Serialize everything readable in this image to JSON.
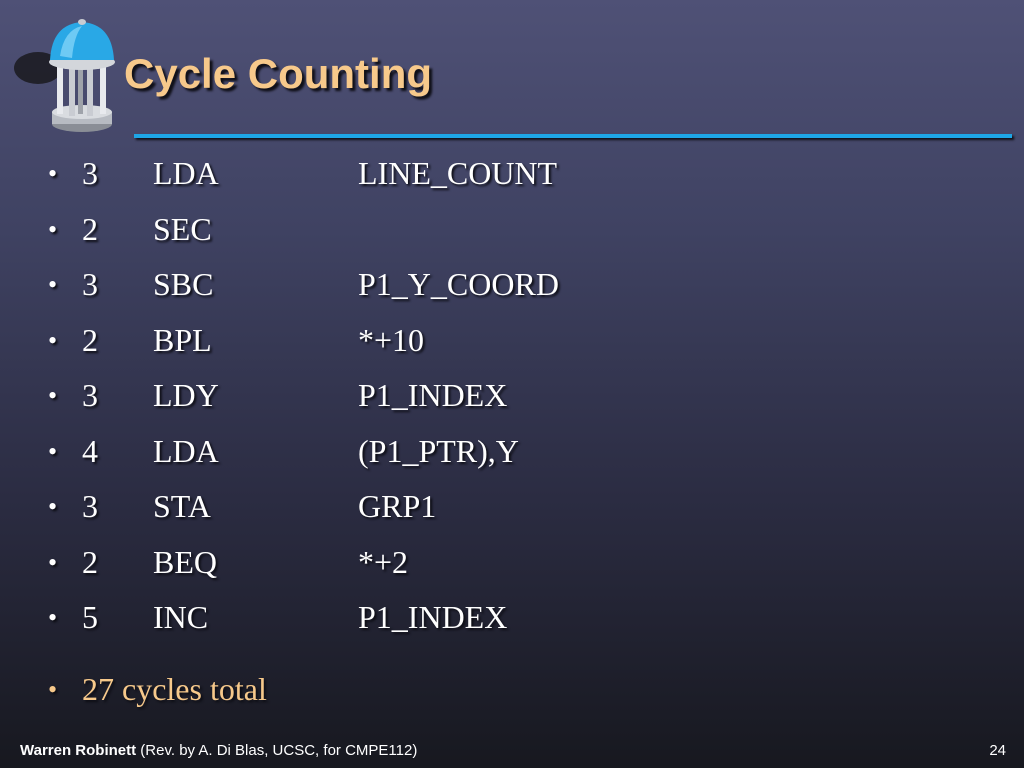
{
  "slide": {
    "title": "Cycle Counting",
    "bullet_char": "•",
    "rows": [
      {
        "cycles": "3",
        "opcode": "LDA",
        "operand": "LINE_COUNT"
      },
      {
        "cycles": "2",
        "opcode": "SEC",
        "operand": ""
      },
      {
        "cycles": "3",
        "opcode": "SBC",
        "operand": "P1_Y_COORD"
      },
      {
        "cycles": "2",
        "opcode": "BPL",
        "operand": "*+10"
      },
      {
        "cycles": "3",
        "opcode": "LDY",
        "operand": "P1_INDEX"
      },
      {
        "cycles": "4",
        "opcode": "LDA",
        "operand": "(P1_PTR),Y"
      },
      {
        "cycles": "3",
        "opcode": "STA",
        "operand": "GRP1"
      },
      {
        "cycles": "2",
        "opcode": "BEQ",
        "operand": "*+2"
      },
      {
        "cycles": "5",
        "opcode": "INC",
        "operand": "P1_INDEX"
      }
    ],
    "summary": "27 cycles total"
  },
  "footer": {
    "author": "Warren Robinett",
    "note": "(Rev. by A. Di Blas, UCSC, for CMPE112)",
    "page_number": "24"
  },
  "theme": {
    "title_color": "#f7c98b",
    "rule_color": "#1ea6e6",
    "text_color": "#ffffff",
    "summary_color": "#f7c98b"
  },
  "icons": {
    "logo": "old-well-icon"
  }
}
